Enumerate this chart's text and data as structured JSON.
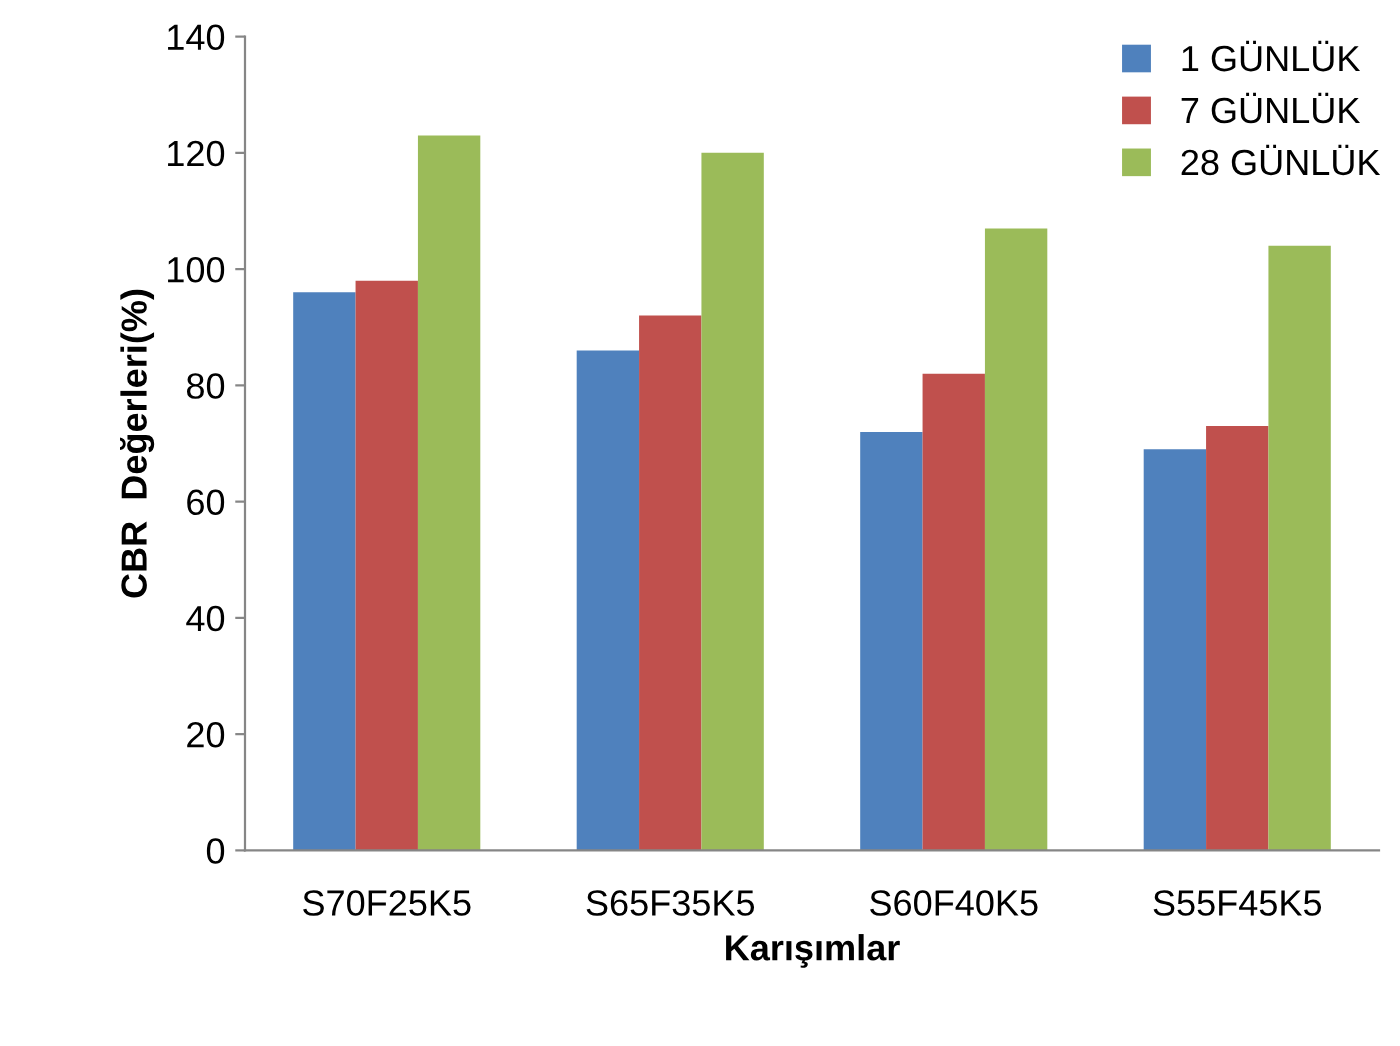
{
  "chart_data": {
    "type": "bar",
    "xlabel": "Karışımlar",
    "ylabel": "CBR  Değerleri(%)",
    "categories": [
      "S70F25K5",
      "S65F35K5",
      "S60F40K5",
      "S55F45K5"
    ],
    "series": [
      {
        "name": "1 GÜNLÜK",
        "color": "#4f81bd",
        "values": [
          96,
          86,
          72,
          69
        ]
      },
      {
        "name": "7 GÜNLÜK",
        "color": "#c0504d",
        "values": [
          98,
          92,
          82,
          73
        ]
      },
      {
        "name": "28 GÜNLÜK",
        "color": "#9bbb59",
        "values": [
          123,
          120,
          107,
          104
        ]
      }
    ],
    "ylim": [
      0,
      140
    ],
    "yticks": [
      0,
      20,
      40,
      60,
      80,
      100,
      120,
      140
    ],
    "grid": false,
    "legend": "top right"
  }
}
